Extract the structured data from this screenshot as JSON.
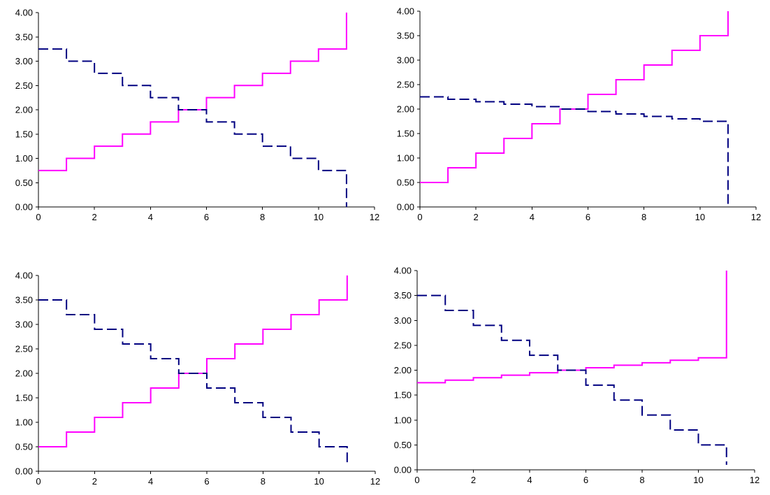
{
  "chart_data": [
    {
      "type": "line",
      "step": true,
      "xlim": [
        0,
        12
      ],
      "ylim": [
        0,
        4
      ],
      "x_ticks": [
        "0",
        "2",
        "4",
        "6",
        "8",
        "10",
        "12"
      ],
      "y_ticks": [
        "0.00",
        "0.50",
        "1.00",
        "1.50",
        "2.00",
        "2.50",
        "3.00",
        "3.50",
        "4.00"
      ],
      "series": [
        {
          "color": "#ff00ff",
          "style": "solid",
          "x": [
            0,
            1,
            2,
            3,
            4,
            5,
            6,
            7,
            8,
            9,
            10,
            11
          ],
          "y": [
            0.75,
            1.0,
            1.25,
            1.5,
            1.75,
            2.0,
            2.25,
            2.5,
            2.75,
            3.0,
            3.25,
            4.0
          ]
        },
        {
          "color": "#000080",
          "style": "dashed",
          "x": [
            0,
            1,
            2,
            3,
            4,
            5,
            6,
            7,
            8,
            9,
            10,
            11
          ],
          "y": [
            3.25,
            3.0,
            2.75,
            2.5,
            2.25,
            2.0,
            1.75,
            1.5,
            1.25,
            1.0,
            0.75,
            0.0
          ]
        }
      ]
    },
    {
      "type": "line",
      "step": true,
      "xlim": [
        0,
        12
      ],
      "ylim": [
        0,
        4
      ],
      "x_ticks": [
        "0",
        "2",
        "4",
        "6",
        "8",
        "10",
        "12"
      ],
      "y_ticks": [
        "0.00",
        "0.50",
        "1.00",
        "1.50",
        "2.00",
        "2.50",
        "3.00",
        "3.50",
        "4.00"
      ],
      "series": [
        {
          "color": "#ff00ff",
          "style": "solid",
          "x": [
            0,
            1,
            2,
            3,
            4,
            5,
            6,
            7,
            8,
            9,
            10,
            11
          ],
          "y": [
            0.5,
            0.8,
            1.1,
            1.4,
            1.7,
            2.0,
            2.3,
            2.6,
            2.9,
            3.2,
            3.5,
            4.0
          ]
        },
        {
          "color": "#000080",
          "style": "dashed",
          "x": [
            0,
            1,
            2,
            3,
            4,
            5,
            6,
            7,
            8,
            9,
            10,
            11
          ],
          "y": [
            2.25,
            2.2,
            2.15,
            2.1,
            2.05,
            2.0,
            1.95,
            1.9,
            1.85,
            1.8,
            1.75,
            0.0
          ]
        }
      ]
    },
    {
      "type": "line",
      "step": true,
      "xlim": [
        0,
        12
      ],
      "ylim": [
        0,
        4
      ],
      "x_ticks": [
        "0",
        "2",
        "4",
        "6",
        "8",
        "10",
        "12"
      ],
      "y_ticks": [
        "0.00",
        "0.50",
        "1.00",
        "1.50",
        "2.00",
        "2.50",
        "3.00",
        "3.50",
        "4.00"
      ],
      "series": [
        {
          "color": "#ff00ff",
          "style": "solid",
          "x": [
            0,
            1,
            2,
            3,
            4,
            5,
            6,
            7,
            8,
            9,
            10,
            11
          ],
          "y": [
            0.5,
            0.8,
            1.1,
            1.4,
            1.7,
            2.0,
            2.3,
            2.6,
            2.9,
            3.2,
            3.5,
            4.0
          ]
        },
        {
          "color": "#000080",
          "style": "dashed",
          "x": [
            0,
            1,
            2,
            3,
            4,
            5,
            6,
            7,
            8,
            9,
            10,
            11
          ],
          "y": [
            3.5,
            3.2,
            2.9,
            2.6,
            2.3,
            2.0,
            1.7,
            1.4,
            1.1,
            0.8,
            0.5,
            0.1
          ]
        }
      ]
    },
    {
      "type": "line",
      "step": true,
      "xlim": [
        0,
        12
      ],
      "ylim": [
        0,
        4
      ],
      "x_ticks": [
        "0",
        "2",
        "4",
        "6",
        "8",
        "10",
        "12"
      ],
      "y_ticks": [
        "0.00",
        "0.50",
        "1.00",
        "1.50",
        "2.00",
        "2.50",
        "3.00",
        "3.50",
        "4.00"
      ],
      "series": [
        {
          "color": "#ff00ff",
          "style": "solid",
          "x": [
            0,
            1,
            2,
            3,
            4,
            5,
            6,
            7,
            8,
            9,
            10,
            11
          ],
          "y": [
            1.75,
            1.8,
            1.85,
            1.9,
            1.95,
            2.0,
            2.05,
            2.1,
            2.15,
            2.2,
            2.25,
            4.0
          ]
        },
        {
          "color": "#000080",
          "style": "dashed",
          "x": [
            0,
            1,
            2,
            3,
            4,
            5,
            6,
            7,
            8,
            9,
            10,
            11
          ],
          "y": [
            3.5,
            3.2,
            2.9,
            2.6,
            2.3,
            2.0,
            1.7,
            1.4,
            1.1,
            0.8,
            0.5,
            0.1
          ]
        }
      ]
    }
  ]
}
